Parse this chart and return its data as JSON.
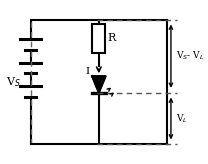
{
  "bg_color": "#ffffff",
  "line_color": "#000000",
  "dashed_color": "#555555",
  "fig_width": 2.08,
  "fig_height": 1.64,
  "dpi": 100,
  "labels": {
    "VS": "V$_S$",
    "R": "R",
    "I": "I",
    "VS_VL": "V$_S$- V$_L$",
    "VL": "V$_L$"
  }
}
